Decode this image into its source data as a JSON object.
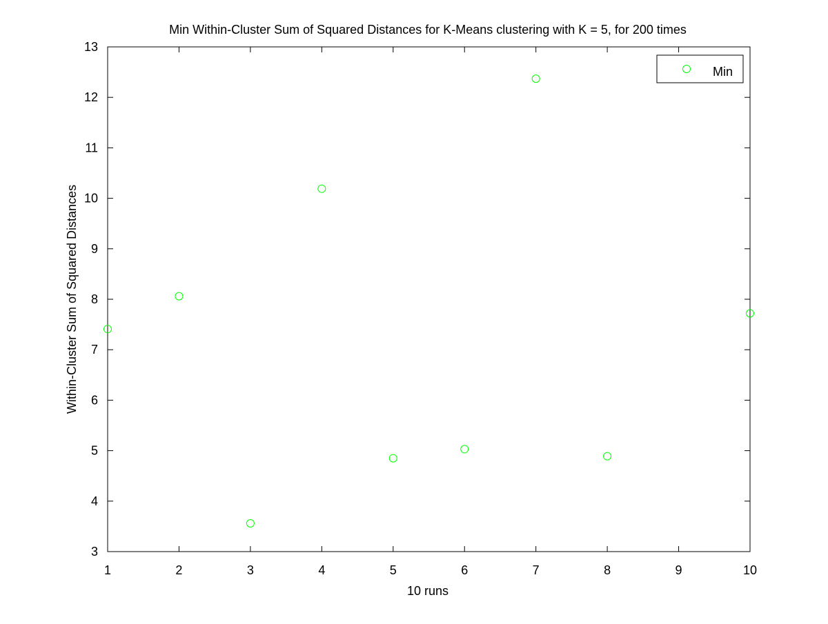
{
  "chart_data": {
    "type": "scatter",
    "title": "Min Within-Cluster Sum of Squared Distances for K-Means clustering with K = 5, for 200 times",
    "xlabel": "10 runs",
    "ylabel": "Within-Cluster Sum of Squared Distances",
    "xlim": [
      1,
      10
    ],
    "ylim": [
      3,
      13
    ],
    "xticks": [
      "1",
      "2",
      "3",
      "4",
      "5",
      "6",
      "7",
      "8",
      "9",
      "10"
    ],
    "yticks": [
      "3",
      "4",
      "5",
      "6",
      "7",
      "8",
      "9",
      "10",
      "11",
      "12",
      "13"
    ],
    "grid": false,
    "legend_position": "top-right",
    "marker": "circle-open",
    "series": [
      {
        "name": "Min",
        "color": "#00ff00",
        "x": [
          1,
          2,
          3,
          4,
          5,
          6,
          7,
          8,
          10
        ],
        "y": [
          7.41,
          8.06,
          3.56,
          10.19,
          4.85,
          5.03,
          12.37,
          4.89,
          7.72
        ]
      }
    ]
  }
}
